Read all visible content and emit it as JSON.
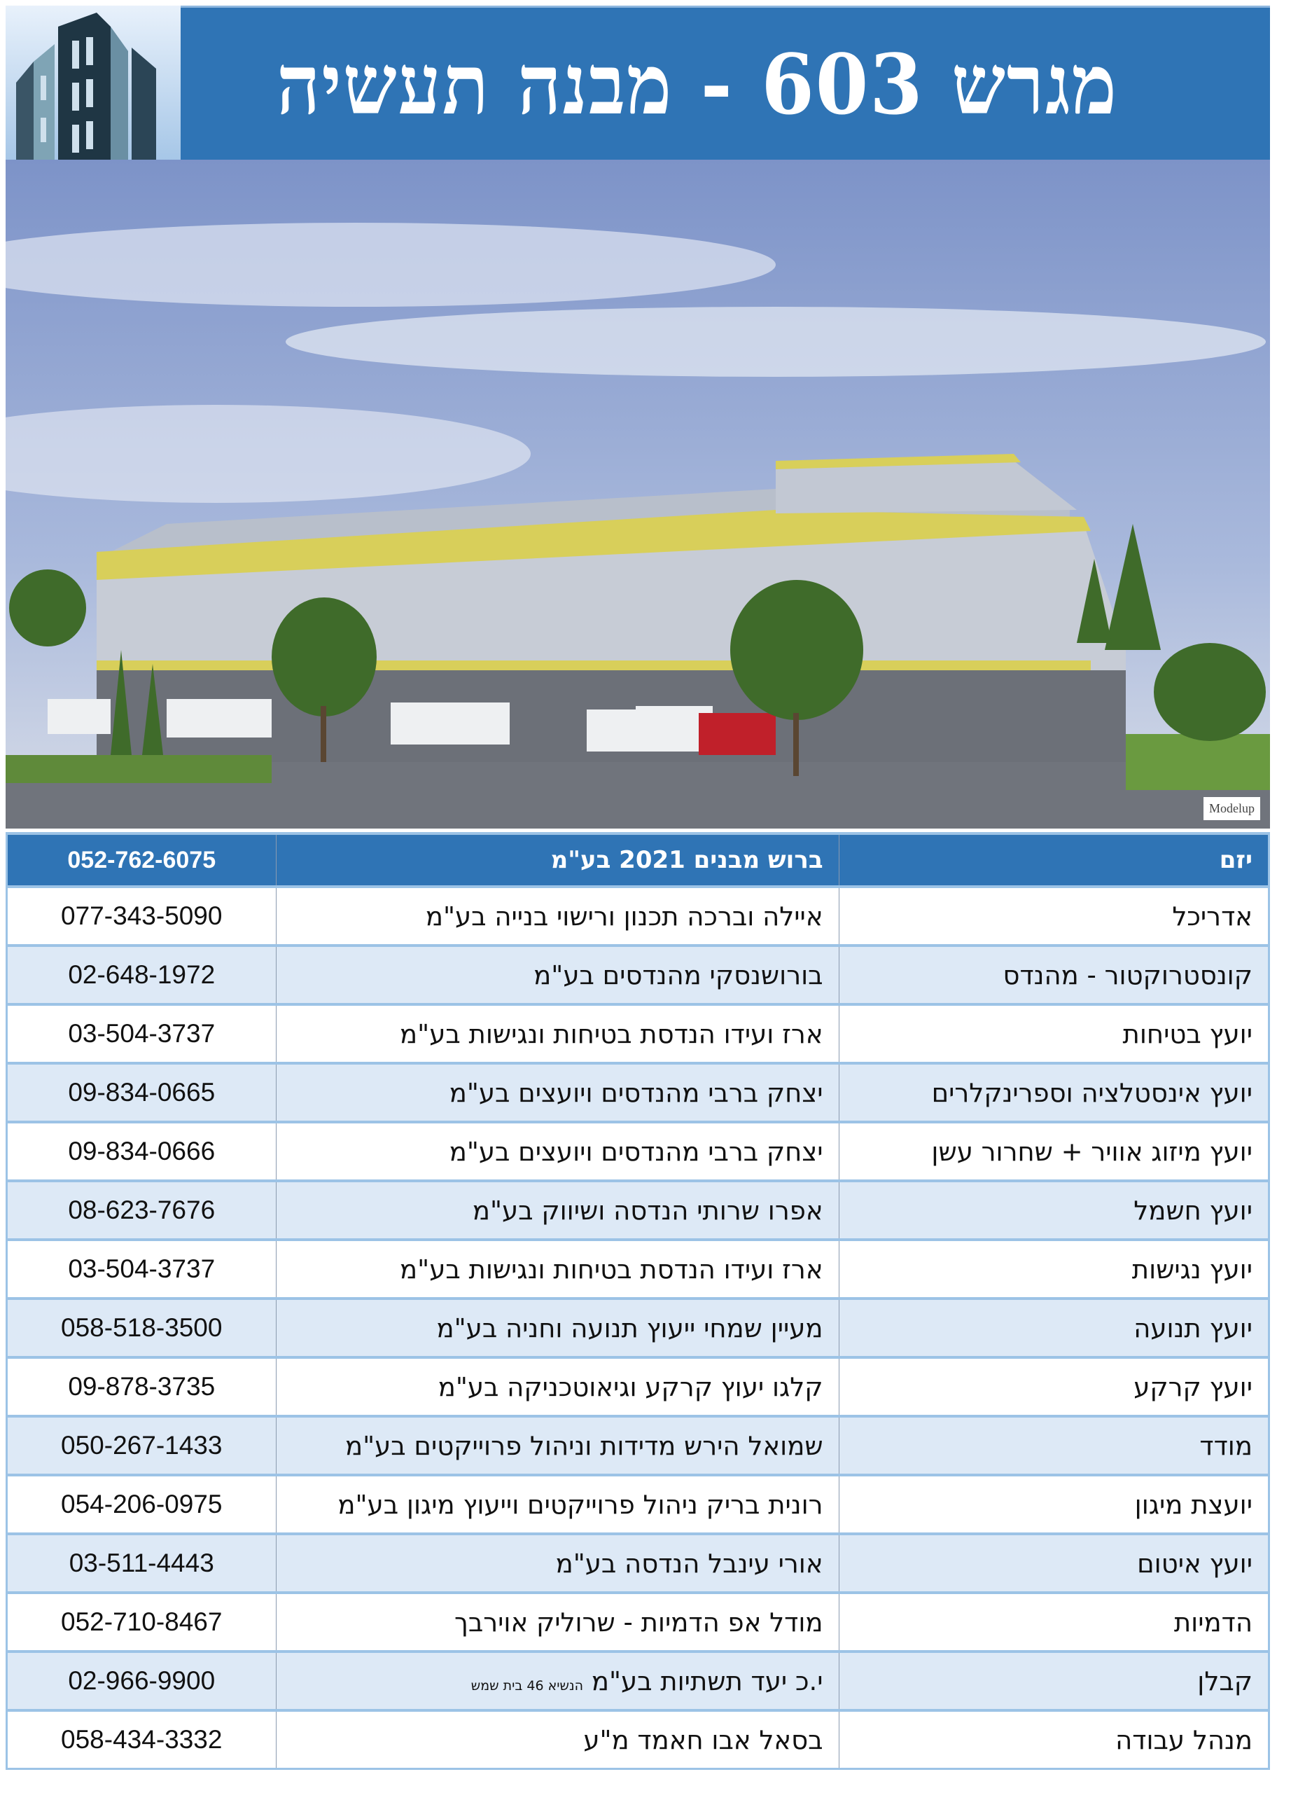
{
  "header": {
    "title": "מגרש 603 - מבנה תעשיה"
  },
  "photo": {
    "watermark": "Modelup"
  },
  "table": {
    "header": {
      "role": "יזם",
      "company": "ברוש מבנים 2021 בע\"מ",
      "phone": "052-762-6075"
    },
    "rows": [
      {
        "role": "אדריכל",
        "company": "איילה וברכה תכנון ורישוי בנייה בע\"מ",
        "phone": "077-343-5090"
      },
      {
        "role": "קונסטרוקטור - מהנדס",
        "company": "בורושנסקי מהנדסים בע\"מ",
        "phone": "02-648-1972"
      },
      {
        "role": "יועץ בטיחות",
        "company": "ארז ועידו הנדסת בטיחות ונגישות בע\"מ",
        "phone": "03-504-3737"
      },
      {
        "role": "יועץ אינסטלציה וספרינקלרים",
        "company": "יצחק ברבי מהנדסים ויועצים בע\"מ",
        "phone": "09-834-0665"
      },
      {
        "role": "יועץ מיזוג אוויר + שחרור עשן",
        "company": "יצחק ברבי מהנדסים ויועצים בע\"מ",
        "phone": "09-834-0666"
      },
      {
        "role": "יועץ חשמל",
        "company": "אפרו שרותי הנדסה ושיווק בע\"מ",
        "phone": "08-623-7676"
      },
      {
        "role": "יועץ נגישות",
        "company": "ארז ועידו הנדסת בטיחות ונגישות בע\"מ",
        "phone": "03-504-3737"
      },
      {
        "role": "יועץ תנועה",
        "company": "מעיין שמחי ייעוץ תנועה וחניה בע\"מ",
        "phone": "058-518-3500"
      },
      {
        "role": "יועץ קרקע",
        "company": "קלגו יעוץ קרקע וגיאוטכניקה בע\"מ",
        "phone": "09-878-3735"
      },
      {
        "role": "מודד",
        "company": "שמואל הירש מדידות וניהול פרוייקטים בע\"מ",
        "phone": "050-267-1433"
      },
      {
        "role": "יועצת מיגון",
        "company": "רונית בריק ניהול פרוייקטים וייעוץ מיגון בע\"מ",
        "phone": "054-206-0975"
      },
      {
        "role": "יועץ איטום",
        "company": "אורי עינבל הנדסה בע\"מ",
        "phone": "03-511-4443"
      },
      {
        "role": "הדמיות",
        "company": "מודל אפ הדמיות - שרוליק אוירבך",
        "phone": "052-710-8467"
      },
      {
        "role": "קבלן",
        "company": "י.כ יעד תשתיות בע\"מ",
        "company_note": "הנשיא 46 בית שמש",
        "phone": "02-966-9900"
      },
      {
        "role": "מנהל עבודה",
        "company": "בסאל אבו חאמד מ\"ע",
        "phone": "058-434-3332"
      }
    ]
  },
  "colors": {
    "header_blue": "#2f74b5",
    "row_alt": "#dde9f6",
    "border": "#9cc3e6",
    "building_trim": "#d8cf5a"
  }
}
